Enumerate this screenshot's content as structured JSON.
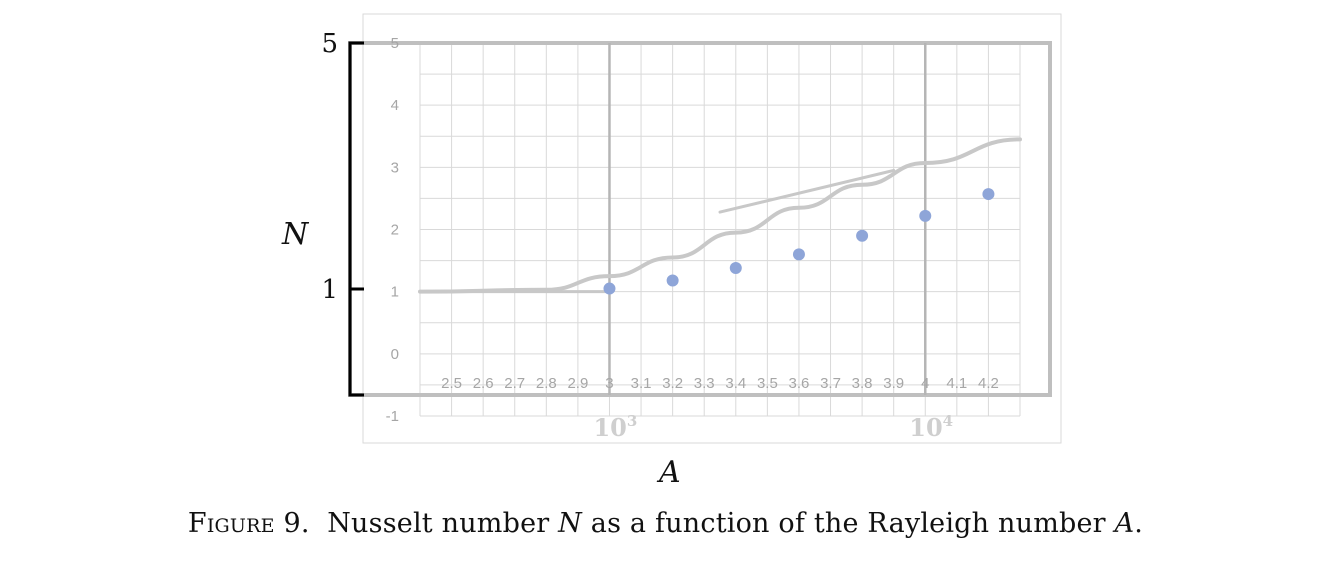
{
  "chart_data": {
    "type": "scatter",
    "title": "",
    "x_ticks": [
      "2.5",
      "2.6",
      "2.7",
      "2.8",
      "2.9",
      "3",
      "3.1",
      "3.2",
      "3.3",
      "3.4",
      "3.5",
      "3.6",
      "3.7",
      "3.8",
      "3.9",
      "4",
      "4.1",
      "4.2"
    ],
    "y_ticks": [
      "-1",
      "0",
      "1",
      "2",
      "3",
      "4",
      "5"
    ],
    "xlim": [
      2.4,
      4.3
    ],
    "ylim": [
      -1,
      5
    ],
    "log_labels": [
      {
        "base": "10",
        "exp": "3",
        "at": 3
      },
      {
        "base": "10",
        "exp": "4",
        "at": 4
      }
    ],
    "original_y_ticks": [
      "5",
      "1"
    ],
    "xlabel": "A",
    "ylabel": "N",
    "series": [
      {
        "points": [
          {
            "x": 3.0,
            "y": 1.05
          },
          {
            "x": 3.2,
            "y": 1.18
          },
          {
            "x": 3.4,
            "y": 1.38
          },
          {
            "x": 3.6,
            "y": 1.6
          },
          {
            "x": 3.8,
            "y": 1.9
          },
          {
            "x": 4.0,
            "y": 2.22
          },
          {
            "x": 4.2,
            "y": 2.57
          }
        ],
        "color": "#8ea5d8"
      }
    ],
    "curves": [
      {
        "kind": "theory",
        "points": [
          [
            2.4,
            1.0
          ],
          [
            2.8,
            1.03
          ],
          [
            3.0,
            1.25
          ],
          [
            3.2,
            1.55
          ],
          [
            3.4,
            1.95
          ],
          [
            3.6,
            2.35
          ],
          [
            3.8,
            2.72
          ],
          [
            4.0,
            3.07
          ],
          [
            4.3,
            3.45
          ]
        ]
      },
      {
        "kind": "flat",
        "points": [
          [
            2.4,
            1.0
          ],
          [
            3.0,
            1.0
          ]
        ]
      },
      {
        "kind": "asymptote",
        "points": [
          [
            3.35,
            2.28
          ],
          [
            3.9,
            2.95
          ]
        ]
      }
    ],
    "grid": true
  },
  "caption": {
    "figure_word": "Figure 9.",
    "text_before": "Nusselt number",
    "symbol_n": "N",
    "text_middle": "as a function of the Rayleigh number",
    "symbol_a": "A",
    "text_end": "."
  },
  "colors": {
    "grid": "#d9d9d9",
    "frame": "#bfbfbf",
    "points": "#8ea5d8",
    "curve": "#c8c8c8"
  }
}
